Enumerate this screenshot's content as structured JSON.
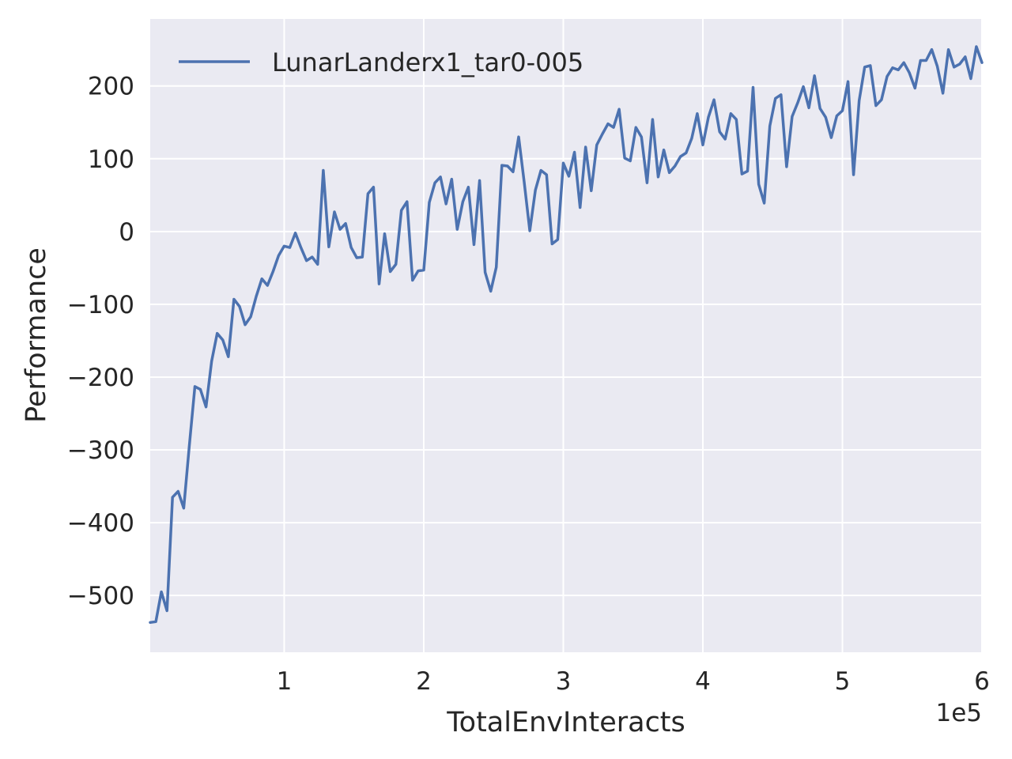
{
  "chart_data": {
    "type": "line",
    "title": "",
    "xlabel": "TotalEnvInteracts",
    "ylabel": "Performance",
    "x_offset_label": "1e5",
    "xlim": [
      4000,
      600000
    ],
    "ylim": [
      -578,
      292
    ],
    "x_ticks": [
      100000,
      200000,
      300000,
      400000,
      500000,
      600000
    ],
    "x_tick_labels": [
      "1",
      "2",
      "3",
      "4",
      "5",
      "6"
    ],
    "y_ticks": [
      -500,
      -400,
      -300,
      -200,
      -100,
      0,
      100,
      200
    ],
    "y_tick_labels": [
      "−500",
      "−400",
      "−300",
      "−200",
      "−100",
      "0",
      "100",
      "200"
    ],
    "grid": true,
    "legend_position": "top-left",
    "colors": {
      "background": "#eaeaf2",
      "grid": "#ffffff",
      "line": "#4c72b0",
      "text": "#262626"
    },
    "series": [
      {
        "name": "LunarLanderx1_tar0-005",
        "x": [
          4000,
          8000,
          12000,
          16000,
          20000,
          24000,
          28000,
          32000,
          36000,
          40000,
          44000,
          48000,
          52000,
          56000,
          60000,
          64000,
          68000,
          72000,
          76000,
          80000,
          84000,
          88000,
          92000,
          96000,
          100000,
          104000,
          108000,
          112000,
          116000,
          120000,
          124000,
          128000,
          132000,
          136000,
          140000,
          144000,
          148000,
          152000,
          156000,
          160000,
          164000,
          168000,
          172000,
          176000,
          180000,
          184000,
          188000,
          192000,
          196000,
          200000,
          204000,
          208000,
          212000,
          216000,
          220000,
          224000,
          228000,
          232000,
          236000,
          240000,
          244000,
          248000,
          252000,
          256000,
          260000,
          264000,
          268000,
          272000,
          276000,
          280000,
          284000,
          288000,
          292000,
          296000,
          300000,
          304000,
          308000,
          312000,
          316000,
          320000,
          324000,
          328000,
          332000,
          336000,
          340000,
          344000,
          348000,
          352000,
          356000,
          360000,
          364000,
          368000,
          372000,
          376000,
          380000,
          384000,
          388000,
          392000,
          396000,
          400000,
          404000,
          408000,
          412000,
          416000,
          420000,
          424000,
          428000,
          432000,
          436000,
          440000,
          444000,
          448000,
          452000,
          456000,
          460000,
          464000,
          468000,
          472000,
          476000,
          480000,
          484000,
          488000,
          492000,
          496000,
          500000,
          504000,
          508000,
          512000,
          516000,
          520000,
          524000,
          528000,
          532000,
          536000,
          540000,
          544000,
          548000,
          552000,
          556000,
          560000,
          564000,
          568000,
          572000,
          576000,
          580000,
          584000,
          588000,
          592000,
          596000,
          600000
        ],
        "y": [
          -537,
          -536,
          -495,
          -521,
          -365,
          -357,
          -380,
          -295,
          -213,
          -217,
          -241,
          -178,
          -140,
          -149,
          -172,
          -93,
          -103,
          -128,
          -117,
          -89,
          -65,
          -74,
          -55,
          -33,
          -20,
          -22,
          -2,
          -22,
          -40,
          -35,
          -45,
          84,
          -21,
          27,
          3,
          11,
          -22,
          -36,
          -35,
          52,
          61,
          -72,
          -3,
          -55,
          -45,
          29,
          41,
          -67,
          -54,
          -53,
          40,
          67,
          75,
          38,
          72,
          3,
          41,
          61,
          -18,
          70,
          -56,
          -82,
          -49,
          91,
          90,
          82,
          130,
          68,
          1,
          57,
          84,
          78,
          -17,
          -11,
          94,
          76,
          109,
          33,
          116,
          56,
          119,
          134,
          148,
          143,
          168,
          101,
          97,
          143,
          130,
          67,
          154,
          75,
          112,
          81,
          90,
          103,
          108,
          128,
          162,
          119,
          157,
          181,
          137,
          127,
          162,
          154,
          79,
          83,
          198,
          65,
          39,
          145,
          183,
          188,
          89,
          158,
          177,
          199,
          170,
          214,
          169,
          157,
          129,
          159,
          166,
          206,
          78,
          180,
          226,
          228,
          173,
          181,
          213,
          225,
          222,
          232,
          218,
          197,
          235,
          235,
          250,
          227,
          190,
          250,
          226,
          230,
          240,
          210,
          254,
          232
        ]
      }
    ]
  }
}
